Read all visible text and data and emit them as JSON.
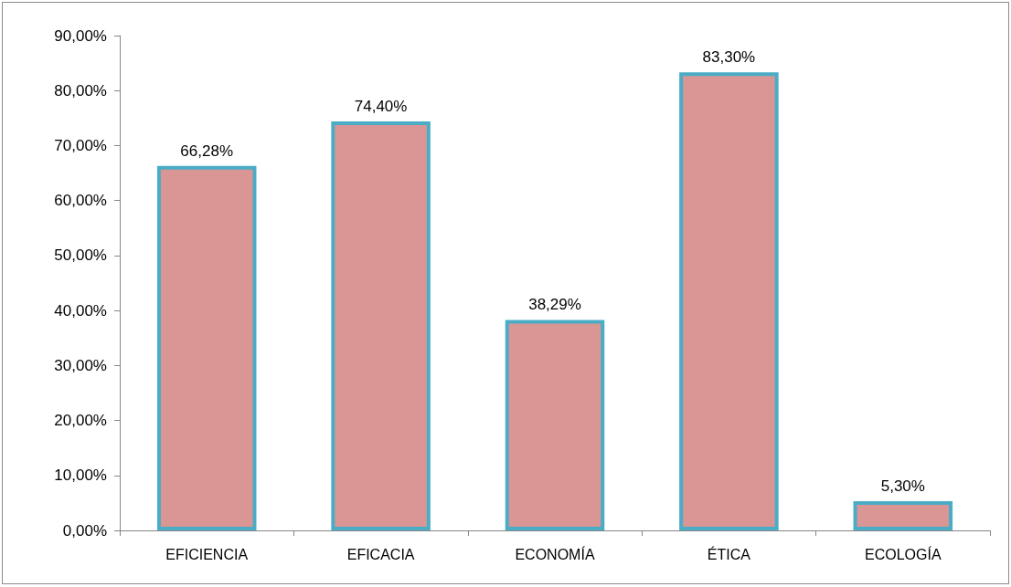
{
  "chart_data": {
    "type": "bar",
    "categories": [
      "EFICIENCIA",
      "EFICACIA",
      "ECONOMÍA",
      "ÉTICA",
      "ECOLOGÍA"
    ],
    "values": [
      66.28,
      74.4,
      38.29,
      83.3,
      5.3
    ],
    "value_labels": [
      "66,28%",
      "74,40%",
      "38,29%",
      "83,30%",
      "5,30%"
    ],
    "color": "#d99694",
    "ylim": [
      0,
      90
    ],
    "yticks": [
      {
        "value": 0,
        "label": "0,00%"
      },
      {
        "value": 10,
        "label": "10,00%"
      },
      {
        "value": 20,
        "label": "20,00%"
      },
      {
        "value": 30,
        "label": "30,00%"
      },
      {
        "value": 40,
        "label": "40,00%"
      },
      {
        "value": 50,
        "label": "50,00%"
      },
      {
        "value": 60,
        "label": "60,00%"
      },
      {
        "value": 70,
        "label": "70,00%"
      },
      {
        "value": 80,
        "label": "80,00%"
      },
      {
        "value": 90,
        "label": "90,00%"
      }
    ],
    "grid": false
  }
}
